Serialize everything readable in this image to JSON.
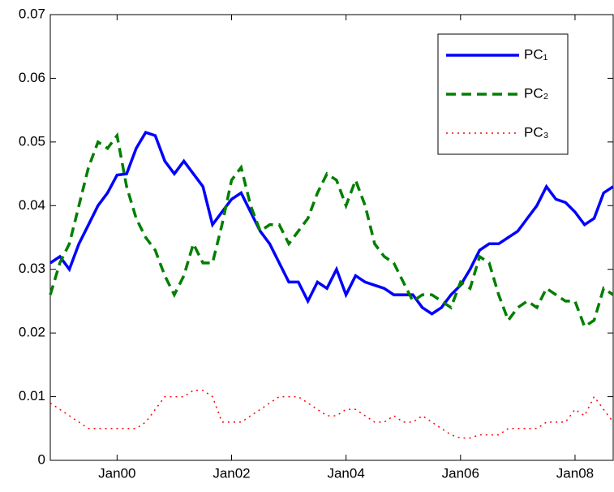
{
  "chart_data": {
    "type": "line",
    "categories": [
      null,
      null,
      null,
      null,
      null,
      null,
      null,
      "Jan00",
      null,
      null,
      null,
      null,
      null,
      null,
      null,
      null,
      null,
      null,
      null,
      "Jan02",
      null,
      null,
      null,
      null,
      null,
      null,
      null,
      null,
      null,
      null,
      null,
      "Jan04",
      null,
      null,
      null,
      null,
      null,
      null,
      null,
      null,
      null,
      null,
      null,
      "Jan06",
      null,
      null,
      null,
      null,
      null,
      null,
      null,
      null,
      null,
      null,
      null,
      "Jan08",
      null,
      null,
      null,
      null
    ],
    "series": [
      {
        "name": "PC₁",
        "color": "#0000ff",
        "style": "solid",
        "values": [
          0.031,
          0.032,
          0.03,
          0.034,
          0.037,
          0.04,
          0.042,
          0.0448,
          0.045,
          0.049,
          0.0515,
          0.051,
          0.047,
          0.045,
          0.047,
          0.045,
          0.043,
          0.037,
          0.039,
          0.041,
          0.042,
          0.039,
          0.036,
          0.034,
          0.031,
          0.028,
          0.028,
          0.025,
          0.028,
          0.027,
          0.03,
          0.026,
          0.029,
          0.028,
          0.0275,
          0.027,
          0.026,
          0.026,
          0.026,
          0.024,
          0.023,
          0.024,
          0.026,
          0.0275,
          0.03,
          0.033,
          0.034,
          0.034,
          0.035,
          0.036,
          0.038,
          0.04,
          0.043,
          0.041,
          0.0405,
          0.039,
          0.037,
          0.038,
          0.042,
          0.043
        ]
      },
      {
        "name": "PC₂",
        "color": "#007f00",
        "style": "dashed",
        "values": [
          0.026,
          0.031,
          0.034,
          0.04,
          0.046,
          0.05,
          0.049,
          0.051,
          0.043,
          0.038,
          0.035,
          0.033,
          0.029,
          0.026,
          0.029,
          0.034,
          0.031,
          0.031,
          0.037,
          0.044,
          0.046,
          0.04,
          0.036,
          0.037,
          0.037,
          0.034,
          0.036,
          0.038,
          0.042,
          0.045,
          0.044,
          0.04,
          0.044,
          0.04,
          0.034,
          0.032,
          0.031,
          0.028,
          0.025,
          0.026,
          0.026,
          0.025,
          0.024,
          0.028,
          0.027,
          0.032,
          0.031,
          0.026,
          0.022,
          0.024,
          0.025,
          0.024,
          0.027,
          0.026,
          0.025,
          0.025,
          0.021,
          0.022,
          0.027,
          0.026
        ]
      },
      {
        "name": "PC₃",
        "color": "#ff0000",
        "style": "dotted",
        "values": [
          0.009,
          0.008,
          0.007,
          0.006,
          0.005,
          0.005,
          0.005,
          0.005,
          0.005,
          0.005,
          0.006,
          0.008,
          0.01,
          0.01,
          0.01,
          0.011,
          0.011,
          0.01,
          0.006,
          0.006,
          0.006,
          0.007,
          0.008,
          0.009,
          0.01,
          0.01,
          0.01,
          0.009,
          0.008,
          0.007,
          0.007,
          0.008,
          0.008,
          0.007,
          0.006,
          0.006,
          0.007,
          0.006,
          0.006,
          0.007,
          0.006,
          0.005,
          0.004,
          0.0035,
          0.0035,
          0.004,
          0.004,
          0.004,
          0.005,
          0.005,
          0.005,
          0.005,
          0.006,
          0.006,
          0.006,
          0.008,
          0.007,
          0.01,
          0.008,
          0.006
        ]
      }
    ],
    "ylim": [
      0,
      0.07
    ],
    "yticks": [
      0,
      0.01,
      0.02,
      0.03,
      0.04,
      0.05,
      0.06,
      0.07
    ],
    "grid": false,
    "legend": "upper right"
  }
}
